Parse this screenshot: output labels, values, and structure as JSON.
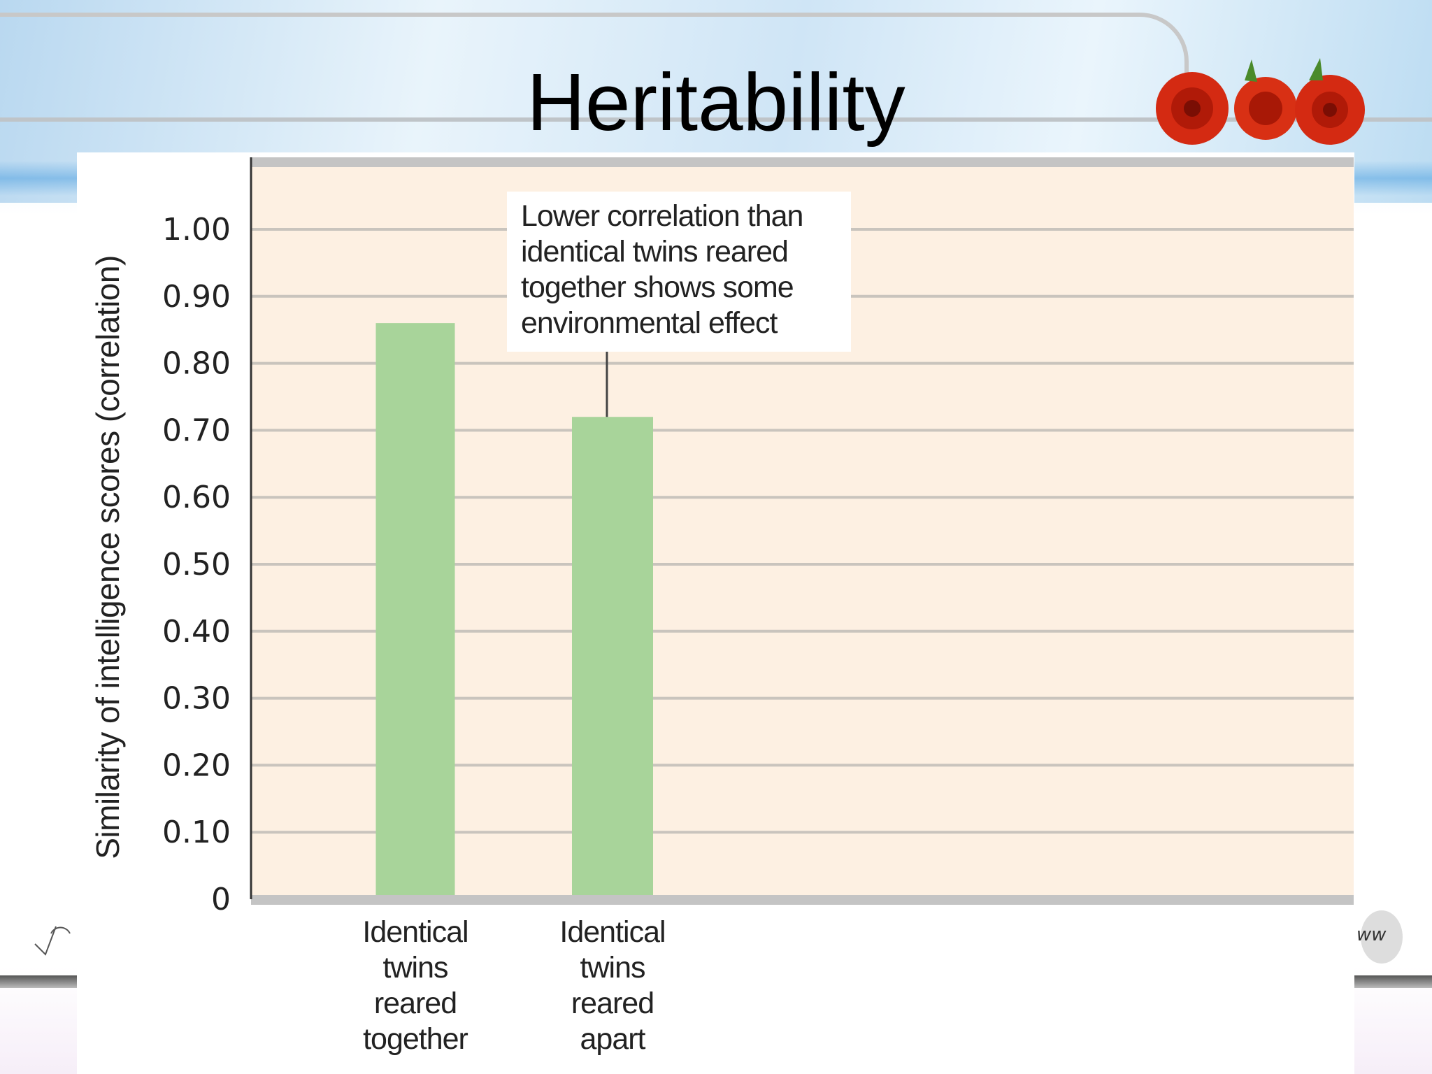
{
  "slide": {
    "title": "Heritability"
  },
  "chart_data": {
    "type": "bar",
    "title": "",
    "categories": [
      "Identical twins reared together",
      "Identical twins reared apart"
    ],
    "category_lines": [
      [
        "Identical",
        "twins",
        "reared",
        "together"
      ],
      [
        "Identical",
        "twins",
        "reared",
        "apart"
      ]
    ],
    "values": [
      0.86,
      0.72
    ],
    "xlabel": "",
    "ylabel": "Similarity of intelligence scores (correlation)",
    "ylim": [
      0,
      1.0
    ],
    "yticks": [
      "0",
      "0.10",
      "0.20",
      "0.30",
      "0.40",
      "0.50",
      "0.60",
      "0.70",
      "0.80",
      "0.90",
      "1.00"
    ],
    "grid": true,
    "annotation": {
      "lines": [
        "Lower correlation than",
        "identical twins reared",
        "together shows some",
        "environmental effect"
      ],
      "points_to": "Identical twins reared apart"
    },
    "colors": {
      "bar": "#a8d49a",
      "plot_bg": "#fdf0e2",
      "grid": "#c9c4bd",
      "axis_band": "#c4c4c4"
    }
  },
  "icons": [
    "rose-decoration-icon",
    "check-icon",
    "globe-icon"
  ]
}
